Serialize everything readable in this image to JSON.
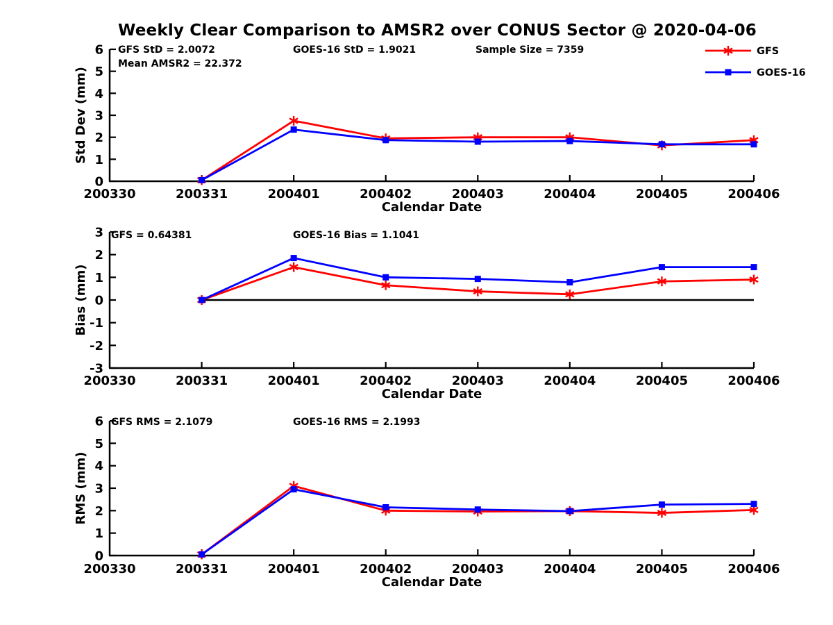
{
  "title": "Weekly Clear Comparison to AMSR2 over CONUS Sector @ 2020-04-06",
  "colors": {
    "gfs": "#ff0000",
    "goes16": "#0000ff",
    "axis": "#000000",
    "zero_line": "#000000"
  },
  "legend": {
    "position": "top-right",
    "entries": [
      {
        "label": "GFS",
        "color": "#ff0000",
        "marker": "asterisk"
      },
      {
        "label": "GOES-16",
        "color": "#0000ff",
        "marker": "square"
      }
    ]
  },
  "chart_data": [
    {
      "type": "line",
      "name": "std-dev",
      "ylabel": "Std Dev (mm)",
      "xlabel": "Calendar Date",
      "x_ticks": [
        "200330",
        "200331",
        "200401",
        "200402",
        "200403",
        "200404",
        "200405",
        "200406"
      ],
      "y_ticks": [
        0,
        1,
        2,
        3,
        4,
        5,
        6
      ],
      "ylim": [
        0,
        6
      ],
      "grid": false,
      "x": [
        "200331",
        "200401",
        "200402",
        "200403",
        "200404",
        "200405",
        "200406"
      ],
      "series": [
        {
          "name": "GFS",
          "color": "#ff0000",
          "marker": "asterisk",
          "values": [
            0.05,
            2.75,
            1.95,
            2.0,
            2.0,
            1.63,
            1.87
          ]
        },
        {
          "name": "GOES-16",
          "color": "#0000ff",
          "marker": "square",
          "values": [
            0.05,
            2.35,
            1.87,
            1.8,
            1.83,
            1.68,
            1.68
          ]
        }
      ],
      "annotations": [
        {
          "text": "GFS StD = 2.0072"
        },
        {
          "text": "Mean AMSR2 = 22.372"
        },
        {
          "text": "GOES-16 StD = 1.9021"
        },
        {
          "text": "Sample Size = 7359"
        }
      ],
      "zero_line": false
    },
    {
      "type": "line",
      "name": "bias",
      "ylabel": "Bias (mm)",
      "xlabel": "Calendar Date",
      "x_ticks": [
        "200330",
        "200331",
        "200401",
        "200402",
        "200403",
        "200404",
        "200405",
        "200406"
      ],
      "y_ticks": [
        -3,
        -2,
        -1,
        0,
        1,
        2,
        3
      ],
      "ylim": [
        -3,
        3
      ],
      "grid": false,
      "x": [
        "200331",
        "200401",
        "200402",
        "200403",
        "200404",
        "200405",
        "200406"
      ],
      "series": [
        {
          "name": "GFS",
          "color": "#ff0000",
          "marker": "asterisk",
          "values": [
            0.0,
            1.45,
            0.65,
            0.38,
            0.25,
            0.82,
            0.9
          ]
        },
        {
          "name": "GOES-16",
          "color": "#0000ff",
          "marker": "square",
          "values": [
            0.0,
            1.85,
            1.0,
            0.93,
            0.78,
            1.45,
            1.45
          ]
        }
      ],
      "annotations": [
        {
          "text": "GFS = 0.64381"
        },
        {
          "text": "GOES-16 Bias  = 1.1041"
        }
      ],
      "zero_line": true
    },
    {
      "type": "line",
      "name": "rms",
      "ylabel": "RMS (mm)",
      "xlabel": "Calendar Date",
      "x_ticks": [
        "200330",
        "200331",
        "200401",
        "200402",
        "200403",
        "200404",
        "200405",
        "200406"
      ],
      "y_ticks": [
        0,
        1,
        2,
        3,
        4,
        5,
        6
      ],
      "ylim": [
        0,
        6
      ],
      "grid": false,
      "x": [
        "200331",
        "200401",
        "200402",
        "200403",
        "200404",
        "200405",
        "200406"
      ],
      "series": [
        {
          "name": "GFS",
          "color": "#ff0000",
          "marker": "asterisk",
          "values": [
            0.05,
            3.1,
            2.0,
            1.96,
            1.98,
            1.9,
            2.03
          ]
        },
        {
          "name": "GOES-16",
          "color": "#0000ff",
          "marker": "square",
          "values": [
            0.05,
            2.95,
            2.15,
            2.05,
            1.98,
            2.27,
            2.3
          ]
        }
      ],
      "annotations": [
        {
          "text": "GFS RMS = 2.1079"
        },
        {
          "text": "GOES-16 RMS = 2.1993"
        }
      ],
      "zero_line": false
    }
  ]
}
